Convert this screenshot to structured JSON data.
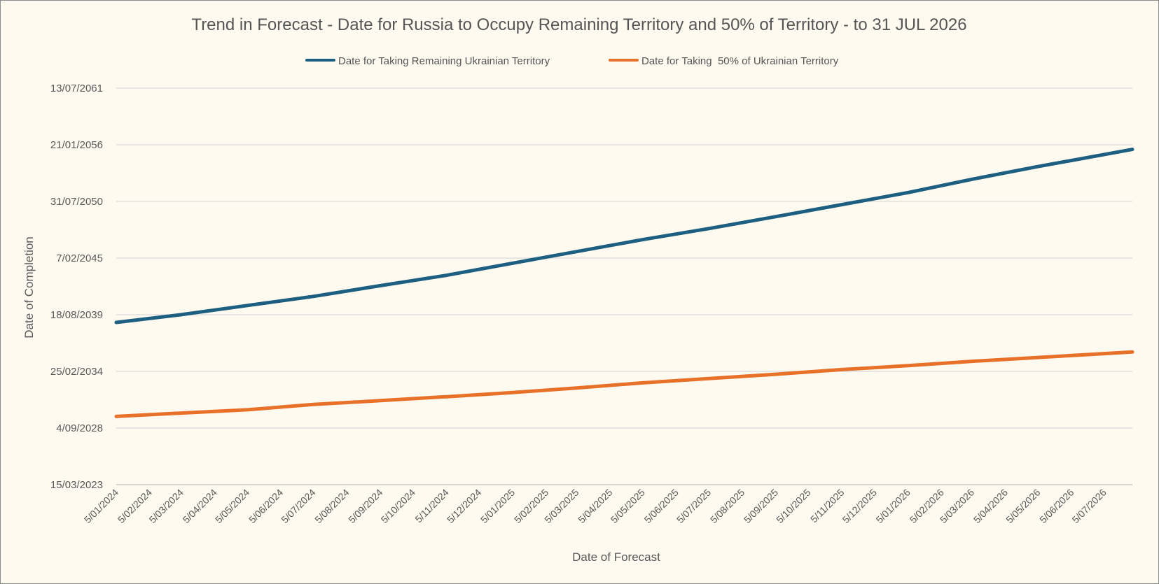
{
  "chart_data": {
    "type": "line",
    "title": "Trend in Forecast - Date for Russia to Occupy Remaining Territory and 50% of Territory - to 31 JUL 2026",
    "xlabel": "Date of Forecast",
    "ylabel": "Date of Completion",
    "x_tick_labels": [
      "5/01/2024",
      "5/02/2024",
      "5/03/2024",
      "5/04/2024",
      "5/05/2024",
      "5/06/2024",
      "5/07/2024",
      "5/08/2024",
      "5/09/2024",
      "5/10/2024",
      "5/11/2024",
      "5/12/2024",
      "5/01/2025",
      "5/02/2025",
      "5/03/2025",
      "5/04/2025",
      "5/05/2025",
      "5/06/2025",
      "5/07/2025",
      "5/08/2025",
      "5/09/2025",
      "5/10/2025",
      "5/11/2025",
      "5/12/2025",
      "5/01/2026",
      "5/02/2026",
      "5/03/2026",
      "5/04/2026",
      "5/05/2026",
      "5/06/2026",
      "5/07/2026"
    ],
    "xlim": [
      "2024-01-05",
      "2026-07-31"
    ],
    "y_tick_labels": [
      "15/03/2023",
      "4/09/2028",
      "25/02/2034",
      "18/08/2039",
      "7/02/2045",
      "31/07/2050",
      "21/01/2056",
      "13/07/2061"
    ],
    "ylim": [
      "2023-03-15",
      "2061-07-13"
    ],
    "grid": "horizontal",
    "legend_position": "top",
    "series": [
      {
        "name": "Date for Taking Remaining Ukrainian Territory",
        "color": "#1d5f80",
        "points": [
          [
            "2024-01-05",
            "2038-11-20"
          ],
          [
            "2024-03-05",
            "2039-08-20"
          ],
          [
            "2024-05-05",
            "2040-07-10"
          ],
          [
            "2024-07-05",
            "2041-05-25"
          ],
          [
            "2024-09-05",
            "2042-06-10"
          ],
          [
            "2024-11-05",
            "2043-06-10"
          ],
          [
            "2025-01-05",
            "2044-08-10"
          ],
          [
            "2025-03-05",
            "2045-09-25"
          ],
          [
            "2025-05-05",
            "2046-11-20"
          ],
          [
            "2025-07-05",
            "2047-12-15"
          ],
          [
            "2025-09-05",
            "2049-02-10"
          ],
          [
            "2025-11-05",
            "2050-04-10"
          ],
          [
            "2026-01-05",
            "2051-06-10"
          ],
          [
            "2026-03-05",
            "2052-09-20"
          ],
          [
            "2026-05-05",
            "2053-12-15"
          ],
          [
            "2026-07-31",
            "2055-08-10"
          ]
        ]
      },
      {
        "name": "Date for Taking  50% of Ukrainian Territory",
        "color": "#e8712a",
        "points": [
          [
            "2024-01-05",
            "2029-10-20"
          ],
          [
            "2024-03-05",
            "2030-02-15"
          ],
          [
            "2024-05-05",
            "2030-06-10"
          ],
          [
            "2024-07-05",
            "2030-12-15"
          ],
          [
            "2024-09-05",
            "2031-05-01"
          ],
          [
            "2024-11-05",
            "2031-09-15"
          ],
          [
            "2025-01-05",
            "2032-02-10"
          ],
          [
            "2025-03-05",
            "2032-07-20"
          ],
          [
            "2025-05-05",
            "2033-01-15"
          ],
          [
            "2025-07-05",
            "2033-06-15"
          ],
          [
            "2025-09-05",
            "2033-11-15"
          ],
          [
            "2025-11-05",
            "2034-05-01"
          ],
          [
            "2026-01-05",
            "2034-09-15"
          ],
          [
            "2026-03-05",
            "2035-02-15"
          ],
          [
            "2026-05-05",
            "2035-07-01"
          ],
          [
            "2026-07-31",
            "2036-01-10"
          ]
        ]
      }
    ]
  }
}
